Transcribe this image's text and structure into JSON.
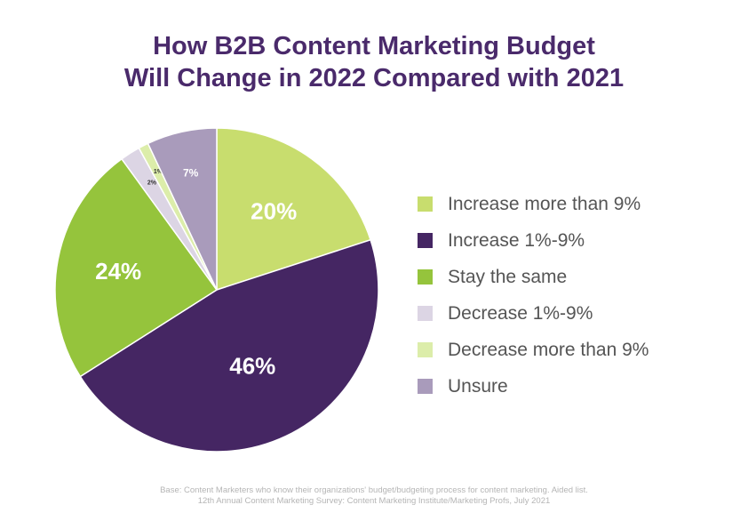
{
  "chart_data": {
    "type": "pie",
    "title_lines": [
      "How B2B Content Marketing Budget",
      "Will Change in 2022 Compared with 2021"
    ],
    "slices": [
      {
        "label": "Increase more than 9%",
        "value": 20,
        "display": "20%",
        "color": "#c8dd6e"
      },
      {
        "label": "Increase 1%-9%",
        "value": 46,
        "display": "46%",
        "color": "#452663"
      },
      {
        "label": "Stay the same",
        "value": 24,
        "display": "24%",
        "color": "#95c43c"
      },
      {
        "label": "Decrease 1%-9%",
        "value": 2,
        "display": "2%",
        "color": "#dcd5e4"
      },
      {
        "label": "Decrease more than 9%",
        "value": 1,
        "display": "1%",
        "color": "#dcedaa"
      },
      {
        "label": "Unsure",
        "value": 7,
        "display": "7%",
        "color": "#a99bbb"
      }
    ],
    "legend_placement": "right"
  },
  "footnote": {
    "line1": "Base: Content Marketers who know their organizations' budget/budgeting process for content marketing. Aided list.",
    "line2": "12th Annual Content Marketing Survey: Content Marketing Institute/Marketing Profs, July 2021"
  }
}
